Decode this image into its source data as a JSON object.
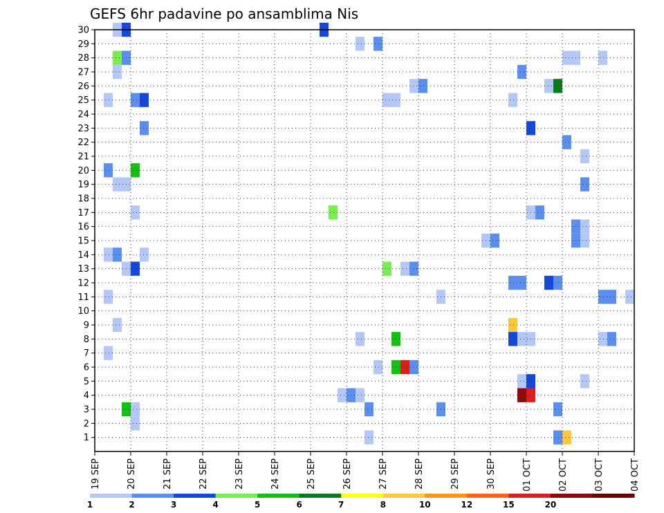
{
  "chart_data": {
    "type": "heatmap",
    "title": "GEFS 6hr padavine po ansamblima Nis",
    "y_ticks": [
      "1",
      "2",
      "3",
      "4",
      "5",
      "6",
      "7",
      "8",
      "9",
      "10",
      "11",
      "12",
      "13",
      "14",
      "15",
      "16",
      "17",
      "18",
      "19",
      "20",
      "21",
      "22",
      "23",
      "24",
      "25",
      "26",
      "27",
      "28",
      "29",
      "30"
    ],
    "x_ticks": [
      "19 SEP",
      "20 SEP",
      "21 SEP",
      "22 SEP",
      "23 SEP",
      "24 SEP",
      "25 SEP",
      "26 SEP",
      "27 SEP",
      "28 SEP",
      "29 SEP",
      "30 SEP",
      "01 OCT",
      "02 OCT",
      "03 OCT",
      "04 OCT"
    ],
    "x_range_days": [
      0,
      15
    ],
    "y_range": [
      0,
      30
    ],
    "grid": true,
    "colorbar": {
      "labels": [
        "1",
        "2",
        "3",
        "4",
        "5",
        "6",
        "7",
        "8",
        "10",
        "12",
        "15",
        "20"
      ],
      "colors": [
        "#b4c8f8",
        "#5a8ff0",
        "#1448dc",
        "#78ee50",
        "#14c014",
        "#0a7a1a",
        "#ffff14",
        "#ffc83c",
        "#ff9614",
        "#ff6414",
        "#dc1e1e",
        "#8c0a0a",
        "#6e0000"
      ]
    },
    "cells": [
      {
        "member": 30,
        "day": 0.5,
        "level": 0
      },
      {
        "member": 30,
        "day": 0.75,
        "level": 2
      },
      {
        "member": 30,
        "day": 6.25,
        "level": 2
      },
      {
        "member": 29,
        "day": 7.25,
        "level": 0
      },
      {
        "member": 29,
        "day": 7.75,
        "level": 1
      },
      {
        "member": 28,
        "day": 0.5,
        "level": 3
      },
      {
        "member": 28,
        "day": 0.75,
        "level": 1
      },
      {
        "member": 28,
        "day": 13.0,
        "level": 0
      },
      {
        "member": 28,
        "day": 13.25,
        "level": 0
      },
      {
        "member": 28,
        "day": 14.0,
        "level": 0
      },
      {
        "member": 27,
        "day": 0.5,
        "level": 0
      },
      {
        "member": 27,
        "day": 11.75,
        "level": 1
      },
      {
        "member": 26,
        "day": 8.75,
        "level": 0
      },
      {
        "member": 26,
        "day": 9.0,
        "level": 1
      },
      {
        "member": 26,
        "day": 12.5,
        "level": 0
      },
      {
        "member": 26,
        "day": 12.75,
        "level": 5
      },
      {
        "member": 25,
        "day": 0.25,
        "level": 0
      },
      {
        "member": 25,
        "day": 1.0,
        "level": 1
      },
      {
        "member": 25,
        "day": 1.25,
        "level": 2
      },
      {
        "member": 25,
        "day": 8.0,
        "level": 0
      },
      {
        "member": 25,
        "day": 8.25,
        "level": 0
      },
      {
        "member": 25,
        "day": 11.5,
        "level": 0
      },
      {
        "member": 23,
        "day": 1.25,
        "level": 1
      },
      {
        "member": 23,
        "day": 12.0,
        "level": 2
      },
      {
        "member": 22,
        "day": 13.0,
        "level": 1
      },
      {
        "member": 21,
        "day": 13.5,
        "level": 0
      },
      {
        "member": 20,
        "day": 0.25,
        "level": 1
      },
      {
        "member": 20,
        "day": 1.0,
        "level": 4
      },
      {
        "member": 19,
        "day": 0.5,
        "level": 0
      },
      {
        "member": 19,
        "day": 0.75,
        "level": 0
      },
      {
        "member": 19,
        "day": 13.5,
        "level": 1
      },
      {
        "member": 17,
        "day": 1.0,
        "level": 0
      },
      {
        "member": 17,
        "day": 6.5,
        "level": 3
      },
      {
        "member": 17,
        "day": 12.0,
        "level": 0
      },
      {
        "member": 17,
        "day": 12.25,
        "level": 1
      },
      {
        "member": 16,
        "day": 13.25,
        "level": 1
      },
      {
        "member": 16,
        "day": 13.5,
        "level": 0
      },
      {
        "member": 15,
        "day": 10.75,
        "level": 0
      },
      {
        "member": 15,
        "day": 11.0,
        "level": 1
      },
      {
        "member": 15,
        "day": 13.25,
        "level": 1
      },
      {
        "member": 15,
        "day": 13.5,
        "level": 0
      },
      {
        "member": 14,
        "day": 0.25,
        "level": 0
      },
      {
        "member": 14,
        "day": 0.5,
        "level": 1
      },
      {
        "member": 14,
        "day": 1.25,
        "level": 0
      },
      {
        "member": 13,
        "day": 0.75,
        "level": 0
      },
      {
        "member": 13,
        "day": 1.0,
        "level": 2
      },
      {
        "member": 13,
        "day": 8.0,
        "level": 3
      },
      {
        "member": 13,
        "day": 8.5,
        "level": 0
      },
      {
        "member": 13,
        "day": 8.75,
        "level": 1
      },
      {
        "member": 12,
        "day": 11.5,
        "level": 1
      },
      {
        "member": 12,
        "day": 11.75,
        "level": 1
      },
      {
        "member": 12,
        "day": 12.5,
        "level": 2
      },
      {
        "member": 12,
        "day": 12.75,
        "level": 1
      },
      {
        "member": 11,
        "day": 0.25,
        "level": 0
      },
      {
        "member": 11,
        "day": 9.5,
        "level": 0
      },
      {
        "member": 11,
        "day": 14.0,
        "level": 1
      },
      {
        "member": 11,
        "day": 14.25,
        "level": 1
      },
      {
        "member": 11,
        "day": 14.75,
        "level": 0
      },
      {
        "member": 9,
        "day": 0.5,
        "level": 0
      },
      {
        "member": 9,
        "day": 11.5,
        "level": 7
      },
      {
        "member": 8,
        "day": 7.25,
        "level": 0
      },
      {
        "member": 8,
        "day": 8.25,
        "level": 4
      },
      {
        "member": 8,
        "day": 11.5,
        "level": 2
      },
      {
        "member": 8,
        "day": 11.75,
        "level": 0
      },
      {
        "member": 8,
        "day": 12.0,
        "level": 0
      },
      {
        "member": 8,
        "day": 14.0,
        "level": 0
      },
      {
        "member": 8,
        "day": 14.25,
        "level": 1
      },
      {
        "member": 7,
        "day": 0.25,
        "level": 0
      },
      {
        "member": 6,
        "day": 7.75,
        "level": 0
      },
      {
        "member": 6,
        "day": 8.25,
        "level": 4
      },
      {
        "member": 6,
        "day": 8.5,
        "level": 10
      },
      {
        "member": 6,
        "day": 8.75,
        "level": 1
      },
      {
        "member": 5,
        "day": 11.75,
        "level": 0
      },
      {
        "member": 5,
        "day": 12.0,
        "level": 2
      },
      {
        "member": 5,
        "day": 13.5,
        "level": 0
      },
      {
        "member": 4,
        "day": 6.75,
        "level": 0
      },
      {
        "member": 4,
        "day": 7.0,
        "level": 1
      },
      {
        "member": 4,
        "day": 7.25,
        "level": 0
      },
      {
        "member": 4,
        "day": 11.75,
        "level": 11
      },
      {
        "member": 4,
        "day": 12.0,
        "level": 10
      },
      {
        "member": 3,
        "day": 0.75,
        "level": 4
      },
      {
        "member": 3,
        "day": 1.0,
        "level": 0
      },
      {
        "member": 3,
        "day": 7.5,
        "level": 1
      },
      {
        "member": 3,
        "day": 9.5,
        "level": 1
      },
      {
        "member": 3,
        "day": 12.75,
        "level": 1
      },
      {
        "member": 2,
        "day": 1.0,
        "level": 0
      },
      {
        "member": 1,
        "day": 7.5,
        "level": 0
      },
      {
        "member": 1,
        "day": 12.75,
        "level": 1
      },
      {
        "member": 1,
        "day": 13.0,
        "level": 7
      }
    ]
  }
}
